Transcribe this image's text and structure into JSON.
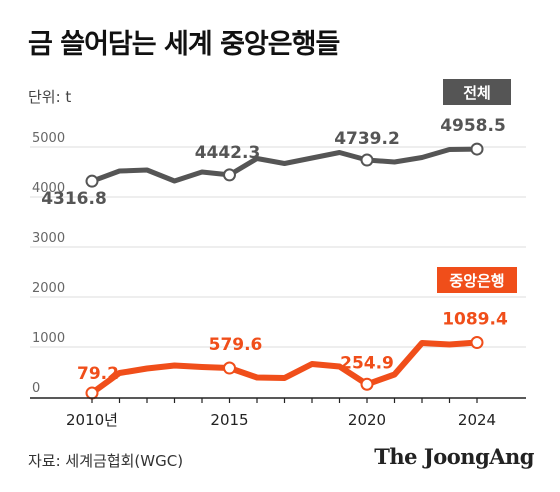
{
  "title": "금 쓸어담는 세계 중앙은행들",
  "unit_label": "단위: t",
  "source": "자료: 세계금협회(WGC)",
  "brand": "The JoongAng",
  "colors": {
    "total": "#555555",
    "central": "#f04e1a",
    "grid": "#dddddd",
    "axis": "#222222"
  },
  "chart_data": {
    "type": "line",
    "title": "금 쓸어담는 세계 중앙은행들",
    "ylabel": "단위: t",
    "ylim": [
      0,
      5000
    ],
    "y_ticks": [
      0,
      1000,
      2000,
      3000,
      4000,
      5000
    ],
    "y_tick_labels": [
      "0",
      "1000",
      "2000",
      "3000",
      "4000",
      "5000"
    ],
    "x": [
      2010,
      2011,
      2012,
      2013,
      2014,
      2015,
      2016,
      2017,
      2018,
      2019,
      2020,
      2021,
      2022,
      2023,
      2024
    ],
    "x_ticks": [
      2010,
      2015,
      2020,
      2024
    ],
    "x_tick_labels": [
      "2010년",
      "2015",
      "2020",
      "2024"
    ],
    "grid": true,
    "series": [
      {
        "name": "전체",
        "color": "#555555",
        "values": [
          4316.8,
          4520,
          4540,
          4320,
          4500,
          4442.3,
          4770,
          4670,
          4780,
          4890,
          4739.2,
          4700,
          4790,
          4950,
          4958.5
        ],
        "labeled": [
          {
            "x": 2010,
            "label": "4316.8"
          },
          {
            "x": 2015,
            "label": "4442.3"
          },
          {
            "x": 2020,
            "label": "4739.2"
          },
          {
            "x": 2024,
            "label": "4958.5"
          }
        ]
      },
      {
        "name": "중앙은행",
        "color": "#f04e1a",
        "values": [
          79.2,
          480,
          570,
          630,
          600,
          579.6,
          390,
          380,
          660,
          610,
          254.9,
          450,
          1080,
          1050,
          1089.4
        ],
        "labeled": [
          {
            "x": 2010,
            "label": "79.2"
          },
          {
            "x": 2015,
            "label": "579.6"
          },
          {
            "x": 2020,
            "label": "254.9"
          },
          {
            "x": 2024,
            "label": "1089.4"
          }
        ]
      }
    ]
  }
}
